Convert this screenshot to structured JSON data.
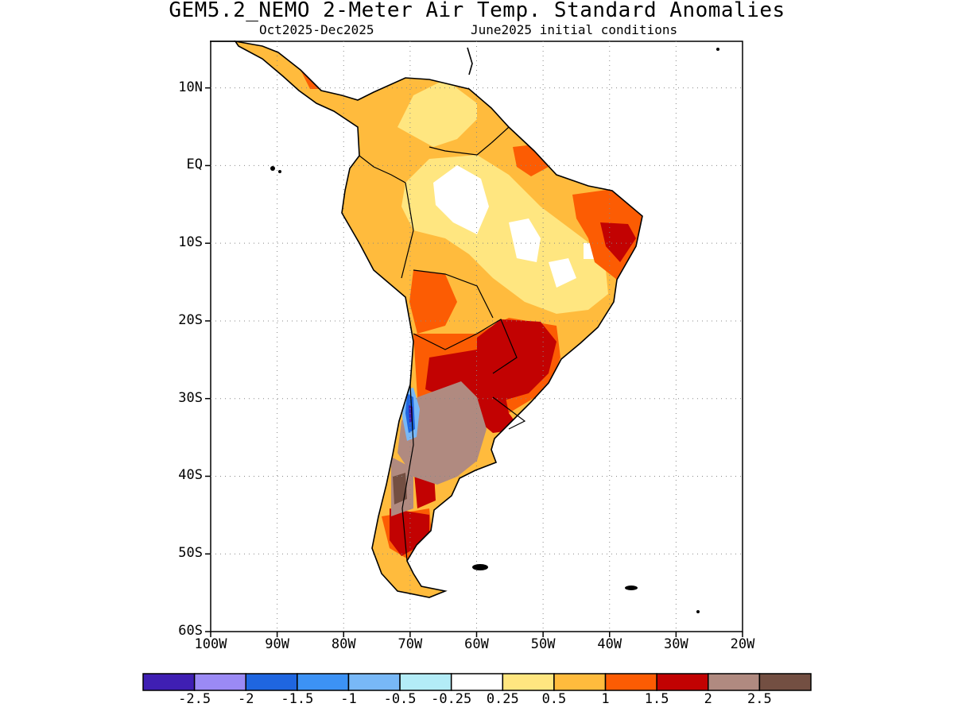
{
  "title": "GEM5.2_NEMO 2-Meter Air Temp. Standard Anomalies",
  "subtitle_period": "Oct2025-Dec2025",
  "subtitle_init": "June2025 initial conditions",
  "axes": {
    "lat_labels": [
      "10N",
      "EQ",
      "10S",
      "20S",
      "30S",
      "40S",
      "50S",
      "60S"
    ],
    "lon_labels": [
      "100W",
      "90W",
      "80W",
      "70W",
      "60W",
      "50W",
      "40W",
      "30W",
      "20W"
    ],
    "lat_values": [
      10,
      0,
      -10,
      -20,
      -30,
      -40,
      -50,
      -60
    ],
    "lon_values": [
      -100,
      -90,
      -80,
      -70,
      -60,
      -50,
      -40,
      -30,
      -20
    ],
    "lat_range": [
      -60,
      16
    ],
    "lon_range": [
      -100,
      -20
    ],
    "grid": "dotted"
  },
  "colorbar": {
    "labels": [
      "-2.5",
      "-2",
      "-1.5",
      "-1",
      "-0.5",
      "-0.25",
      "0.25",
      "0.5",
      "1",
      "1.5",
      "2",
      "2.5"
    ],
    "colors": [
      "#3f1fb3",
      "#9b8af5",
      "#1f66e0",
      "#3c92f5",
      "#78b8f7",
      "#b3ecf7",
      "#ffffff",
      "#ffe680",
      "#ffbb3d",
      "#fc5c03",
      "#c20202",
      "#b08a80",
      "#734f42"
    ]
  },
  "legend_colors": {
    "land": "#ffbb3d",
    "coast": "#000000"
  }
}
